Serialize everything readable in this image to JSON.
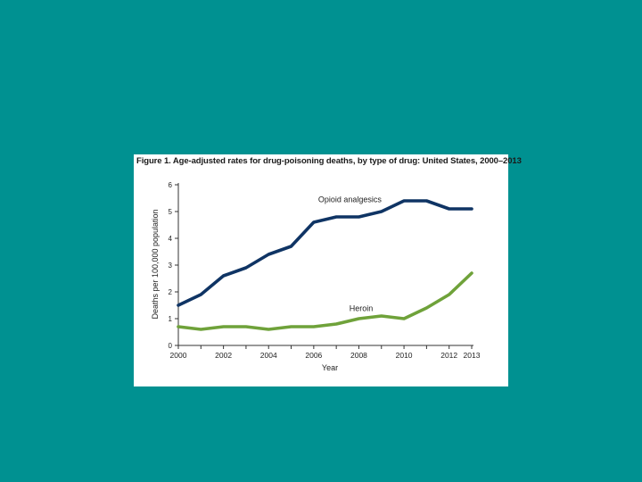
{
  "chart_data": {
    "type": "line",
    "title": "Figure 1. Age-adjusted rates for drug-poisoning deaths, by type of drug: United States, 2000–2013",
    "xlabel": "Year",
    "ylabel": "Deaths per 100,000 population",
    "xlim": [
      2000,
      2013
    ],
    "ylim": [
      0,
      6
    ],
    "x_ticks": [
      "2000",
      "2002",
      "2004",
      "2006",
      "2008",
      "2010",
      "2012",
      "2013"
    ],
    "y_ticks": [
      "0",
      "1",
      "2",
      "3",
      "4",
      "5",
      "6"
    ],
    "grid": false,
    "x": [
      2000,
      2001,
      2002,
      2003,
      2004,
      2005,
      2006,
      2007,
      2008,
      2009,
      2010,
      2011,
      2012,
      2013
    ],
    "series": [
      {
        "name": "Opioid analgesics",
        "color": "#0f3464",
        "values": [
          1.5,
          1.9,
          2.6,
          2.9,
          3.4,
          3.7,
          4.6,
          4.8,
          4.8,
          5.0,
          5.4,
          5.4,
          5.1,
          5.1
        ]
      },
      {
        "name": "Heroin",
        "color": "#6fa23a",
        "values": [
          0.7,
          0.6,
          0.7,
          0.7,
          0.6,
          0.7,
          0.7,
          0.8,
          1.0,
          1.1,
          1.0,
          1.4,
          1.9,
          2.7
        ]
      }
    ]
  }
}
